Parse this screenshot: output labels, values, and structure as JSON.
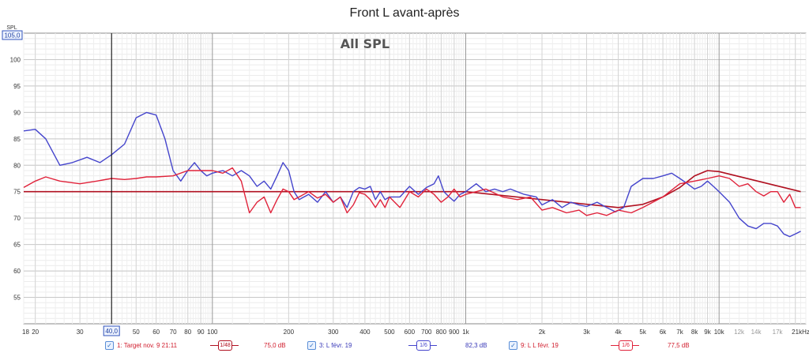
{
  "chart_data": {
    "type": "line",
    "title": "Front L avant-après",
    "annotation": "All SPL",
    "ylabel": "SPL",
    "y_marker": "105,0",
    "x_marker": "40,0",
    "xscale": "log",
    "xlim": [
      18,
      22000
    ],
    "ylim": [
      50,
      105
    ],
    "grid": true,
    "y_ticks": [
      55,
      60,
      65,
      70,
      75,
      80,
      85,
      90,
      95,
      100
    ],
    "x_ticks": [
      {
        "v": 18,
        "l": "18"
      },
      {
        "v": 20,
        "l": "20"
      },
      {
        "v": 30,
        "l": "30"
      },
      {
        "v": 50,
        "l": "50"
      },
      {
        "v": 60,
        "l": "60"
      },
      {
        "v": 70,
        "l": "70"
      },
      {
        "v": 80,
        "l": "80"
      },
      {
        "v": 90,
        "l": "90"
      },
      {
        "v": 100,
        "l": "100"
      },
      {
        "v": 200,
        "l": "200"
      },
      {
        "v": 300,
        "l": "300"
      },
      {
        "v": 400,
        "l": "400"
      },
      {
        "v": 500,
        "l": "500"
      },
      {
        "v": 600,
        "l": "600"
      },
      {
        "v": 700,
        "l": "700"
      },
      {
        "v": 800,
        "l": "800"
      },
      {
        "v": 900,
        "l": "900"
      },
      {
        "v": 1000,
        "l": "1k"
      },
      {
        "v": 2000,
        "l": "2k"
      },
      {
        "v": 3000,
        "l": "3k"
      },
      {
        "v": 4000,
        "l": "4k"
      },
      {
        "v": 5000,
        "l": "5k"
      },
      {
        "v": 6000,
        "l": "6k"
      },
      {
        "v": 7000,
        "l": "7k"
      },
      {
        "v": 8000,
        "l": "8k"
      },
      {
        "v": 9000,
        "l": "9k"
      },
      {
        "v": 10000,
        "l": "10k"
      },
      {
        "v": 12000,
        "l": "12k"
      },
      {
        "v": 14000,
        "l": "14k"
      },
      {
        "v": 17000,
        "l": "17k"
      },
      {
        "v": 21000,
        "l": "21kHz"
      }
    ],
    "series": [
      {
        "name": "1: Target nov. 9 21:11",
        "color": "#b01020",
        "smoothing": "1/48",
        "level": "75,0 dB",
        "points": [
          [
            18,
            75
          ],
          [
            1000,
            75
          ],
          [
            4000,
            72
          ],
          [
            5000,
            72.6
          ],
          [
            6000,
            74
          ],
          [
            7000,
            75.8
          ],
          [
            8000,
            78
          ],
          [
            9000,
            79
          ],
          [
            10000,
            78.8
          ],
          [
            21000,
            75
          ]
        ]
      },
      {
        "name": "3: L févr. 19",
        "color": "#4444cc",
        "smoothing": "1/6",
        "level": "82,3 dB",
        "points": [
          [
            18,
            86.5
          ],
          [
            20,
            86.8
          ],
          [
            22,
            85
          ],
          [
            25,
            80
          ],
          [
            28,
            80.5
          ],
          [
            32,
            81.5
          ],
          [
            36,
            80.5
          ],
          [
            40,
            82
          ],
          [
            45,
            84
          ],
          [
            50,
            89
          ],
          [
            55,
            90
          ],
          [
            60,
            89.5
          ],
          [
            65,
            85
          ],
          [
            70,
            79
          ],
          [
            75,
            77
          ],
          [
            80,
            79
          ],
          [
            85,
            80.5
          ],
          [
            90,
            79
          ],
          [
            95,
            78
          ],
          [
            100,
            78.5
          ],
          [
            110,
            79
          ],
          [
            120,
            78
          ],
          [
            130,
            79
          ],
          [
            140,
            78
          ],
          [
            150,
            76
          ],
          [
            160,
            77
          ],
          [
            170,
            75.5
          ],
          [
            180,
            78
          ],
          [
            190,
            80.5
          ],
          [
            200,
            79
          ],
          [
            210,
            75
          ],
          [
            220,
            73.5
          ],
          [
            240,
            74.5
          ],
          [
            260,
            73
          ],
          [
            280,
            75
          ],
          [
            300,
            73
          ],
          [
            320,
            74
          ],
          [
            340,
            72
          ],
          [
            360,
            75
          ],
          [
            380,
            75.8
          ],
          [
            400,
            75.5
          ],
          [
            420,
            76
          ],
          [
            440,
            73.5
          ],
          [
            460,
            75
          ],
          [
            480,
            73.5
          ],
          [
            500,
            74
          ],
          [
            550,
            74
          ],
          [
            600,
            76
          ],
          [
            650,
            74.5
          ],
          [
            700,
            75.8
          ],
          [
            750,
            76.5
          ],
          [
            780,
            78
          ],
          [
            820,
            75
          ],
          [
            860,
            74
          ],
          [
            900,
            73.2
          ],
          [
            950,
            74.5
          ],
          [
            1000,
            75
          ],
          [
            1100,
            76.5
          ],
          [
            1200,
            75
          ],
          [
            1300,
            75.5
          ],
          [
            1400,
            75
          ],
          [
            1500,
            75.5
          ],
          [
            1700,
            74.5
          ],
          [
            1900,
            74
          ],
          [
            2000,
            72.5
          ],
          [
            2200,
            73.5
          ],
          [
            2400,
            72
          ],
          [
            2600,
            73
          ],
          [
            2800,
            72.5
          ],
          [
            3000,
            72.2
          ],
          [
            3300,
            73
          ],
          [
            3600,
            72
          ],
          [
            3900,
            71.2
          ],
          [
            4200,
            72
          ],
          [
            4500,
            76
          ],
          [
            5000,
            77.5
          ],
          [
            5500,
            77.5
          ],
          [
            6000,
            78
          ],
          [
            6500,
            78.5
          ],
          [
            7000,
            77.5
          ],
          [
            7500,
            76.5
          ],
          [
            8000,
            75.5
          ],
          [
            8500,
            76
          ],
          [
            9000,
            77
          ],
          [
            9500,
            76
          ],
          [
            10000,
            75
          ],
          [
            11000,
            73
          ],
          [
            12000,
            70
          ],
          [
            13000,
            68.5
          ],
          [
            14000,
            68
          ],
          [
            15000,
            69
          ],
          [
            16000,
            69
          ],
          [
            17000,
            68.5
          ],
          [
            18000,
            67
          ],
          [
            19000,
            66.5
          ],
          [
            20000,
            67
          ],
          [
            21000,
            67.5
          ]
        ]
      },
      {
        "name": "9: L L févr. 19",
        "color": "#e0223a",
        "smoothing": "1/6",
        "level": "77,5 dB",
        "points": [
          [
            18,
            75.8
          ],
          [
            20,
            77
          ],
          [
            22,
            77.8
          ],
          [
            25,
            77
          ],
          [
            30,
            76.5
          ],
          [
            35,
            77
          ],
          [
            40,
            77.5
          ],
          [
            45,
            77.3
          ],
          [
            50,
            77.5
          ],
          [
            55,
            77.8
          ],
          [
            60,
            77.8
          ],
          [
            70,
            78
          ],
          [
            80,
            79
          ],
          [
            90,
            79
          ],
          [
            100,
            79
          ],
          [
            110,
            78.5
          ],
          [
            120,
            79.5
          ],
          [
            130,
            77
          ],
          [
            140,
            71
          ],
          [
            150,
            73
          ],
          [
            160,
            74
          ],
          [
            170,
            71
          ],
          [
            180,
            73.5
          ],
          [
            190,
            75.5
          ],
          [
            200,
            75
          ],
          [
            210,
            73.5
          ],
          [
            220,
            74
          ],
          [
            240,
            75
          ],
          [
            260,
            73.8
          ],
          [
            280,
            74.5
          ],
          [
            300,
            73
          ],
          [
            320,
            74
          ],
          [
            340,
            71
          ],
          [
            360,
            72.5
          ],
          [
            380,
            74.8
          ],
          [
            400,
            74.5
          ],
          [
            420,
            73.5
          ],
          [
            440,
            72
          ],
          [
            460,
            73.5
          ],
          [
            480,
            72
          ],
          [
            500,
            74
          ],
          [
            550,
            72
          ],
          [
            600,
            75
          ],
          [
            650,
            74
          ],
          [
            700,
            75.5
          ],
          [
            750,
            74.5
          ],
          [
            800,
            73
          ],
          [
            850,
            74
          ],
          [
            900,
            75.5
          ],
          [
            950,
            74
          ],
          [
            1000,
            74.5
          ],
          [
            1100,
            75
          ],
          [
            1200,
            75.5
          ],
          [
            1400,
            74
          ],
          [
            1600,
            73.5
          ],
          [
            1800,
            74
          ],
          [
            2000,
            71.5
          ],
          [
            2200,
            72
          ],
          [
            2500,
            71
          ],
          [
            2800,
            71.5
          ],
          [
            3000,
            70.5
          ],
          [
            3300,
            71
          ],
          [
            3600,
            70.5
          ],
          [
            4000,
            71.5
          ],
          [
            4500,
            71
          ],
          [
            5000,
            72
          ],
          [
            6000,
            74
          ],
          [
            7000,
            76.5
          ],
          [
            8000,
            77
          ],
          [
            9000,
            77.5
          ],
          [
            10000,
            78
          ],
          [
            11000,
            77.5
          ],
          [
            12000,
            76
          ],
          [
            13000,
            76.5
          ],
          [
            14000,
            75
          ],
          [
            15000,
            74.2
          ],
          [
            16000,
            75
          ],
          [
            17000,
            75
          ],
          [
            18000,
            73
          ],
          [
            19000,
            74.5
          ],
          [
            20000,
            72
          ],
          [
            21000,
            72
          ]
        ]
      }
    ]
  }
}
